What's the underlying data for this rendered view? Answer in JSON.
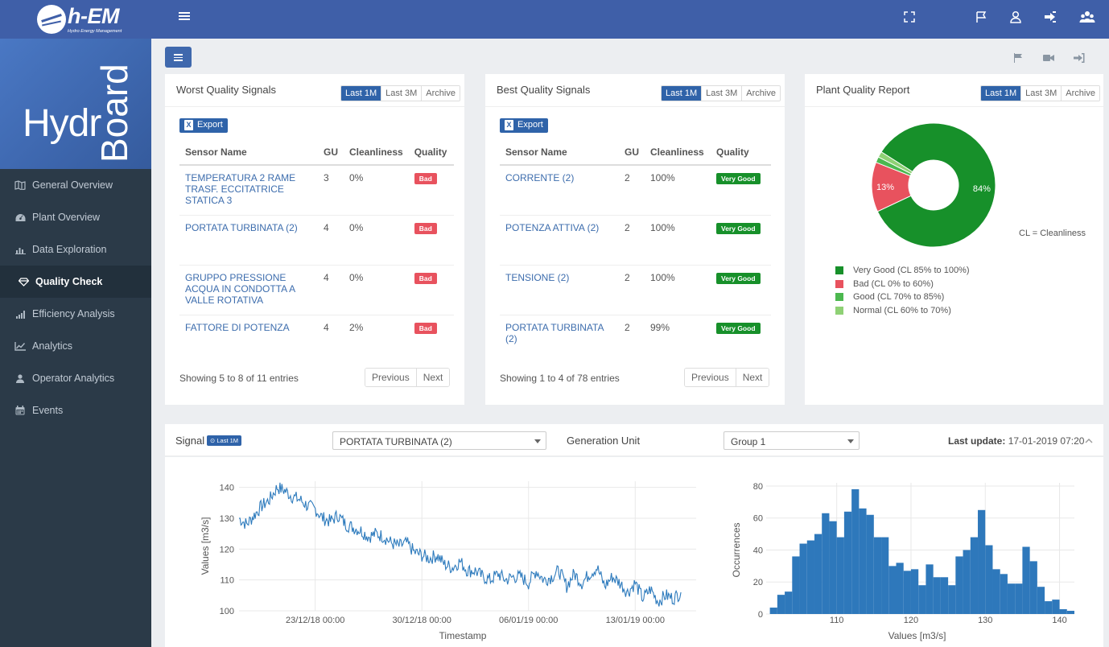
{
  "topbar": {
    "brand": "h-EM",
    "tagline": "Hydro Energy Management",
    "icons": [
      "fullscreen-icon",
      "flag-icon",
      "user-icon",
      "logout-icon",
      "users-icon"
    ]
  },
  "sidebar": {
    "hero_text_1": "Hydr",
    "hero_text_2": "Board",
    "items": [
      {
        "label": "General Overview",
        "icon": "map-icon"
      },
      {
        "label": "Plant Overview",
        "icon": "dashboard-icon"
      },
      {
        "label": "Data Exploration",
        "icon": "bar-chart-icon"
      },
      {
        "label": "Quality Check",
        "icon": "diamond-icon",
        "active": true
      },
      {
        "label": "Efficiency Analysis",
        "icon": "signal-icon"
      },
      {
        "label": "Analytics",
        "icon": "line-chart-icon"
      },
      {
        "label": "Operator Analytics",
        "icon": "user-icon"
      },
      {
        "label": "Events",
        "icon": "calendar-icon"
      }
    ]
  },
  "subtoolbar": {
    "icons": [
      "flag-icon",
      "video-icon",
      "logout-icon"
    ]
  },
  "tabs": [
    "Last 1M",
    "Last 3M",
    "Archive"
  ],
  "worst": {
    "title": "Worst Quality Signals",
    "export": "Export",
    "columns": [
      "Sensor Name",
      "GU",
      "Cleanliness",
      "Quality"
    ],
    "rows": [
      {
        "name": "TEMPERATURA 2 RAME TRASF. ECCITATRICE STATICA 3",
        "gu": "3",
        "clean": "0%",
        "quality": "Bad"
      },
      {
        "name": "PORTATA TURBINATA (2)",
        "gu": "4",
        "clean": "0%",
        "quality": "Bad"
      },
      {
        "name": "GRUPPO PRESSIONE ACQUA IN CONDOTTA A VALLE ROTATIVA",
        "gu": "4",
        "clean": "0%",
        "quality": "Bad"
      },
      {
        "name": "FATTORE DI POTENZA",
        "gu": "4",
        "clean": "2%",
        "quality": "Bad"
      }
    ],
    "showing": "Showing 5 to 8 of 11 entries",
    "prev": "Previous",
    "next": "Next"
  },
  "best": {
    "title": "Best Quality Signals",
    "export": "Export",
    "columns": [
      "Sensor Name",
      "GU",
      "Cleanliness",
      "Quality"
    ],
    "rows": [
      {
        "name": "CORRENTE (2)",
        "gu": "2",
        "clean": "100%",
        "quality": "Very Good"
      },
      {
        "name": "POTENZA ATTIVA (2)",
        "gu": "2",
        "clean": "100%",
        "quality": "Very Good"
      },
      {
        "name": "TENSIONE (2)",
        "gu": "2",
        "clean": "100%",
        "quality": "Very Good"
      },
      {
        "name": "PORTATA TURBINATA (2)",
        "gu": "2",
        "clean": "99%",
        "quality": "Very Good"
      }
    ],
    "showing": "Showing 1 to 4 of 78 entries",
    "prev": "Previous",
    "next": "Next"
  },
  "report": {
    "title": "Plant Quality Report",
    "note": "CL = Cleanliness",
    "legend": [
      {
        "label": "Very Good (CL 85% to 100%)",
        "color": "#17902a"
      },
      {
        "label": "Bad (CL 0% to 60%)",
        "color": "#e8525e"
      },
      {
        "label": "Good (CL 70% to 85%)",
        "color": "#4cb84f"
      },
      {
        "label": "Normal (CL 60% to 70%)",
        "color": "#8fd175"
      }
    ]
  },
  "signalbar": {
    "signal_label": "Signal",
    "signal_badge": "Last 1M",
    "signal_value": "PORTATA TURBINATA (2)",
    "gu_label": "Generation Unit",
    "gu_value": "Group 1",
    "last_update_label": "Last update:",
    "last_update_value": "17-01-2019 07:20"
  },
  "chart_data": [
    {
      "type": "pie",
      "title": "Plant Quality Report",
      "labels": [
        "Very Good (CL 85% to 100%)",
        "Bad (CL 0% to 60%)",
        "Good (CL 70% to 85%)",
        "Normal (CL 60% to 70%)"
      ],
      "values": [
        84,
        13,
        1.5,
        1.5
      ],
      "data_labels": [
        "84%",
        "13%",
        "",
        ""
      ],
      "colors": [
        "#17902a",
        "#e8525e",
        "#4cb84f",
        "#8fd175"
      ],
      "donut": true
    },
    {
      "type": "line",
      "xlabel": "Timestamp",
      "ylabel": "Values  [m3/s]",
      "x_ticks": [
        "23/12/18 00:00",
        "30/12/18 00:00",
        "06/01/19 00:00",
        "13/01/19 00:00"
      ],
      "x_tick_days": [
        5,
        12,
        19,
        26
      ],
      "xlim_days": [
        0,
        30
      ],
      "ylim": [
        100,
        142
      ],
      "y_ticks": [
        100,
        110,
        120,
        130,
        140
      ],
      "grid": true,
      "color": "#2e7bbd",
      "series": [
        {
          "days": [
            0.0,
            0.5,
            1.0,
            1.5,
            2.0,
            2.5,
            3.0,
            3.5,
            4.0,
            4.5,
            5.0,
            5.5,
            6.0,
            6.5,
            7.0,
            7.5,
            8.0,
            8.5,
            9.0,
            9.5,
            10.0,
            10.5,
            11.0,
            11.5,
            12.0,
            12.5,
            13.0,
            13.5,
            14.0,
            14.5,
            15.0,
            15.5,
            16.0,
            16.5,
            17.0,
            17.5,
            18.0,
            18.5,
            19.0,
            19.5,
            20.0,
            20.5,
            21.0,
            21.5,
            22.0,
            22.5,
            23.0,
            23.5,
            24.0,
            24.5,
            25.0,
            25.5,
            26.0,
            26.5,
            27.0,
            27.5,
            28.0,
            28.5,
            29.0
          ],
          "values": [
            130,
            128,
            131,
            134,
            136,
            140,
            139,
            137,
            136,
            134,
            133,
            130,
            129,
            131,
            128,
            127,
            126,
            124,
            125,
            124,
            122,
            121,
            122,
            119,
            118,
            117,
            118,
            115,
            114,
            116,
            113,
            113,
            111,
            110,
            112,
            110,
            111,
            111,
            109,
            113,
            110,
            111,
            113,
            108,
            112,
            109,
            112,
            114,
            108,
            111,
            109,
            106,
            109,
            104,
            107,
            103,
            105,
            104,
            106
          ]
        }
      ]
    },
    {
      "type": "bar",
      "xlabel": "Values  [m3/s]",
      "ylabel": "Occurrences",
      "bin_width": 1,
      "bin_start": 101,
      "bin_centers": [
        101.5,
        102.5,
        103.5,
        104.5,
        105.5,
        106.5,
        107.5,
        108.5,
        109.5,
        110.5,
        111.5,
        112.5,
        113.5,
        114.5,
        115.5,
        116.5,
        117.5,
        118.5,
        119.5,
        120.5,
        121.5,
        122.5,
        123.5,
        124.5,
        125.5,
        126.5,
        127.5,
        128.5,
        129.5,
        130.5,
        131.5,
        132.5,
        133.5,
        134.5,
        135.5,
        136.5,
        137.5,
        138.5,
        139.5,
        140.5,
        141.5
      ],
      "values": [
        4,
        12,
        14,
        36,
        44,
        46,
        50,
        63,
        58,
        48,
        64,
        78,
        66,
        62,
        48,
        48,
        30,
        32,
        27,
        28,
        18,
        31,
        23,
        23,
        18,
        36,
        40,
        48,
        65,
        43,
        28,
        25,
        19,
        19,
        42,
        33,
        17,
        8,
        9,
        3,
        2
      ],
      "x_ticks": [
        110,
        120,
        130,
        140
      ],
      "y_ticks": [
        0,
        20,
        40,
        60,
        80
      ],
      "xlim": [
        100.5,
        142
      ],
      "ylim": [
        0,
        82
      ],
      "grid": true,
      "color": "#2e78bb"
    }
  ]
}
